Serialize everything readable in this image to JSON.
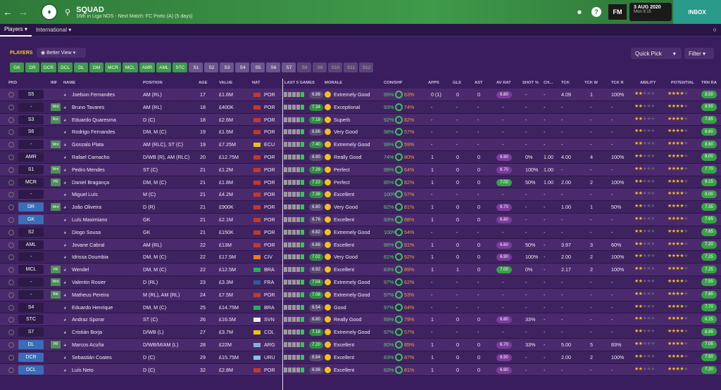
{
  "header": {
    "title": "SQUAD",
    "subtitle": "16th in Liga NOS - Next Match: FC Porto (A) (5 days)",
    "date": "3 AUG 2020",
    "time": "Mon 9:15",
    "fm_label": "FM",
    "inbox_label": "INBOX",
    "help_label": "?"
  },
  "tabs": [
    {
      "label": "Players"
    },
    {
      "label": "International"
    }
  ],
  "toolbar": {
    "players_label": "PLAYERS",
    "view_label": "Better View",
    "quick_pick": "Quick Pick",
    "filter": "Filter"
  },
  "positions_green": [
    "GK",
    "DR",
    "DCR",
    "DCL",
    "DL",
    "DM",
    "MCR",
    "MCL",
    "AMR",
    "AML",
    "STC"
  ],
  "positions_light": [
    "S1",
    "S2",
    "S3",
    "S4",
    "S5",
    "S6",
    "S7"
  ],
  "positions_dark": [
    "S8",
    "S9",
    "S10",
    "S11",
    "S12"
  ],
  "columns": {
    "pkd": "PKD",
    "inf": "INF",
    "name": "NAME",
    "position": "POSITION",
    "age": "AGE",
    "value": "VALUE",
    "nat": "NAT",
    "last5": "LAST 5 GAMES",
    "morale": "MORALE",
    "con": "CON/SHP",
    "apps": "APPS",
    "gls": "GLS",
    "ast": "AST",
    "avrat": "AV RAT",
    "shot": "SHOT %",
    "ch": "CH...",
    "tck": "TCK",
    "tckw": "TCK W",
    "tckr": "TCK R",
    "ability": "ABILITY",
    "potential": "POTENTIAL",
    "trnra": "TRN RA"
  },
  "players": [
    {
      "pkd": "S5",
      "inf": "",
      "name": "Joelson Fernandes",
      "pos": "AM (RL)",
      "age": "17",
      "value": "£1.6M",
      "nat": "POR",
      "mr": "6.88",
      "morale": "Extremely Good",
      "con": "95%",
      "shp": "63%",
      "apps": "0 (1)",
      "gls": "0",
      "ast": "0",
      "avr": "6.80",
      "shot": "-",
      "ch": "-",
      "tck": "4.09",
      "tckw": "1",
      "tckr": "100%",
      "trn": "8.50"
    },
    {
      "pkd": "-",
      "inf": "Wnt",
      "name": "Bruno Tavares",
      "pos": "AM (RL)",
      "age": "18",
      "value": "£400K",
      "nat": "POR",
      "mr": "7.34",
      "morale": "Exceptional",
      "con": "93%",
      "shp": "74%",
      "apps": "-",
      "gls": "-",
      "ast": "-",
      "avr": "-",
      "shot": "-",
      "ch": "-",
      "tck": "-",
      "tckw": "-",
      "tckr": "-",
      "trn": "8.50"
    },
    {
      "pkd": "S3",
      "inf": "Rsv",
      "name": "Eduardo Quaresma",
      "pos": "D (C)",
      "age": "18",
      "value": "£2.6M",
      "nat": "POR",
      "mr": "7.18",
      "morale": "Superb",
      "con": "92%",
      "shp": "82%",
      "apps": "-",
      "gls": "-",
      "ast": "-",
      "avr": "-",
      "shot": "-",
      "ch": "-",
      "tck": "-",
      "tckw": "-",
      "tckr": "-",
      "trn": "7.85"
    },
    {
      "pkd": "S6",
      "inf": "",
      "name": "Rodrigo Fernandes",
      "pos": "DM, M (C)",
      "age": "19",
      "value": "£1.5M",
      "nat": "POR",
      "mr": "6.86",
      "morale": "Very Good",
      "con": "98%",
      "shp": "57%",
      "apps": "-",
      "gls": "-",
      "ast": "-",
      "avr": "-",
      "shot": "-",
      "ch": "-",
      "tck": "-",
      "tckw": "-",
      "tckr": "-",
      "trn": "8.60"
    },
    {
      "pkd": "-",
      "inf": "Wnt",
      "name": "Gonzalo Plata",
      "pos": "AM (RLC), ST (C)",
      "age": "19",
      "value": "£7.25M",
      "nat": "ECU",
      "mr": "7.40",
      "morale": "Extremely Good",
      "con": "99%",
      "shp": "59%",
      "apps": "-",
      "gls": "-",
      "ast": "-",
      "avr": "-",
      "shot": "-",
      "ch": "-",
      "tck": "-",
      "tckw": "-",
      "tckr": "-",
      "trn": "8.60"
    },
    {
      "pkd": "AMR",
      "inf": "",
      "name": "Rafael Camacho",
      "pos": "D/WB (R), AM (RLC)",
      "age": "20",
      "value": "£12.75M",
      "nat": "POR",
      "mr": "6.90",
      "morale": "Really Good",
      "con": "74%",
      "shp": "80%",
      "apps": "1",
      "gls": "0",
      "ast": "0",
      "avr": "6.90",
      "shot": "0%",
      "ch": "1.00",
      "tck": "4.00",
      "tckw": "4",
      "tckr": "100%",
      "trn": "8.00"
    },
    {
      "pkd": "S1",
      "inf": "Wnt",
      "name": "Pedro Mendes",
      "pos": "ST (C)",
      "age": "21",
      "value": "£1.2M",
      "nat": "POR",
      "mr": "7.28",
      "morale": "Perfect",
      "con": "99%",
      "shp": "64%",
      "apps": "1",
      "gls": "0",
      "ast": "0",
      "avr": "6.70",
      "shot": "100%",
      "ch": "1.00",
      "tck": "-",
      "tckw": "-",
      "tckr": "-",
      "trn": "7.70"
    },
    {
      "pkd": "MCR",
      "inf": "PR",
      "name": "Daniel Bragança",
      "pos": "DM, M (C)",
      "age": "21",
      "value": "£1.8M",
      "nat": "POR",
      "mr": "7.22",
      "morale": "Perfect",
      "con": "85%",
      "shp": "82%",
      "apps": "1",
      "gls": "0",
      "ast": "0",
      "avr": "7.00",
      "shot": "50%",
      "ch": "1.00",
      "tck": "2.00",
      "tckw": "2",
      "tckr": "100%",
      "trn": "8.15"
    },
    {
      "pkd": "-",
      "inf": "",
      "name": "Miguel Luís",
      "pos": "M (C)",
      "age": "21",
      "value": "£4.2M",
      "nat": "POR",
      "mr": "7.36",
      "morale": "Excellent",
      "con": "100%",
      "shp": "57%",
      "apps": "-",
      "gls": "-",
      "ast": "-",
      "avr": "-",
      "shot": "-",
      "ch": "-",
      "tck": "-",
      "tckw": "-",
      "tckr": "-",
      "trn": "8.00"
    },
    {
      "pkd": "DR",
      "inf": "Wnt",
      "name": "João Oliveira",
      "pos": "D (R)",
      "age": "21",
      "value": "£900K",
      "nat": "POR",
      "mr": "6.80",
      "morale": "Very Good",
      "con": "82%",
      "shp": "81%",
      "apps": "1",
      "gls": "0",
      "ast": "0",
      "avr": "6.70",
      "shot": "-",
      "ch": "-",
      "tck": "1.00",
      "tckw": "1",
      "tckr": "50%",
      "trn": "7.35"
    },
    {
      "pkd": "GK",
      "inf": "",
      "name": "Luís Maximiano",
      "pos": "GK",
      "age": "21",
      "value": "£2.1M",
      "nat": "POR",
      "mr": "6.76",
      "morale": "Excellent",
      "con": "93%",
      "shp": "88%",
      "apps": "1",
      "gls": "0",
      "ast": "0",
      "avr": "6.80",
      "shot": "-",
      "ch": "-",
      "tck": "-",
      "tckw": "-",
      "tckr": "-",
      "trn": "7.65"
    },
    {
      "pkd": "S2",
      "inf": "",
      "name": "Diogo Sousa",
      "pos": "GK",
      "age": "21",
      "value": "£150K",
      "nat": "POR",
      "mr": "6.82",
      "morale": "Extremely Good",
      "con": "100%",
      "shp": "54%",
      "apps": "-",
      "gls": "-",
      "ast": "-",
      "avr": "-",
      "shot": "-",
      "ch": "-",
      "tck": "-",
      "tckw": "-",
      "tckr": "-",
      "trn": "7.65"
    },
    {
      "pkd": "AML",
      "inf": "",
      "name": "Jovane Cabral",
      "pos": "AM (RL)",
      "age": "22",
      "value": "£13M",
      "nat": "POR",
      "mr": "6.68",
      "morale": "Excellent",
      "con": "86%",
      "shp": "81%",
      "apps": "1",
      "gls": "0",
      "ast": "0",
      "avr": "6.60",
      "shot": "50%",
      "ch": "-",
      "tck": "3.97",
      "tckw": "3",
      "tckr": "60%",
      "trn": "7.20"
    },
    {
      "pkd": "-",
      "inf": "",
      "name": "Idrissa Doumbia",
      "pos": "DM, M (C)",
      "age": "22",
      "value": "£17.5M",
      "nat": "CIV",
      "mr": "7.02",
      "morale": "Very Good",
      "con": "81%",
      "shp": "92%",
      "apps": "1",
      "gls": "0",
      "ast": "0",
      "avr": "6.90",
      "shot": "100%",
      "ch": "-",
      "tck": "2.00",
      "tckw": "2",
      "tckr": "100%",
      "trn": "7.25"
    },
    {
      "pkd": "MCL",
      "inf": "PR",
      "name": "Wendel",
      "pos": "DM, M (C)",
      "age": "22",
      "value": "£12.5M",
      "nat": "BRA",
      "mr": "6.92",
      "morale": "Excellent",
      "con": "83%",
      "shp": "89%",
      "apps": "1",
      "gls": "1",
      "ast": "0",
      "avr": "7.00",
      "shot": "0%",
      "ch": "-",
      "tck": "2.17",
      "tckw": "2",
      "tckr": "100%",
      "trn": "7.25"
    },
    {
      "pkd": "-",
      "inf": "Wnt",
      "name": "Valentin Rosier",
      "pos": "D (RL)",
      "age": "23",
      "value": "£3.3M",
      "nat": "FRA",
      "mr": "7.04",
      "morale": "Extremely Good",
      "con": "97%",
      "shp": "62%",
      "apps": "-",
      "gls": "-",
      "ast": "-",
      "avr": "-",
      "shot": "-",
      "ch": "-",
      "tck": "-",
      "tckw": "-",
      "tckr": "-",
      "trn": "7.55"
    },
    {
      "pkd": "-",
      "inf": "Bkt",
      "name": "Matheus Pereira",
      "pos": "M (RL), AM (RL)",
      "age": "24",
      "value": "£7.5M",
      "nat": "POR",
      "mr": "7.08",
      "morale": "Extremely Good",
      "con": "97%",
      "shp": "53%",
      "apps": "-",
      "gls": "-",
      "ast": "-",
      "avr": "-",
      "shot": "-",
      "ch": "-",
      "tck": "-",
      "tckw": "-",
      "tckr": "-",
      "trn": "7.85"
    },
    {
      "pkd": "S4",
      "inf": "",
      "name": "Eduardo Henrique",
      "pos": "DM, M (C)",
      "age": "25",
      "value": "£14.75M",
      "nat": "BRA",
      "mr": "6.54",
      "morale": "Good",
      "con": "97%",
      "shp": "64%",
      "apps": "-",
      "gls": "-",
      "ast": "-",
      "avr": "-",
      "shot": "-",
      "ch": "-",
      "tck": "-",
      "tckw": "-",
      "tckr": "-",
      "trn": "7.70"
    },
    {
      "pkd": "STC",
      "inf": "",
      "name": "Andraz Sporar",
      "pos": "ST (C)",
      "age": "26",
      "value": "£16.5M",
      "nat": "SVN",
      "mr": "6.80",
      "morale": "Really Good",
      "con": "89%",
      "shp": "79%",
      "apps": "1",
      "gls": "0",
      "ast": "0",
      "avr": "6.80",
      "shot": "33%",
      "ch": "-",
      "tck": "-",
      "tckw": "-",
      "tckr": "-",
      "trn": "6.25"
    },
    {
      "pkd": "S7",
      "inf": "",
      "name": "Cristián Borja",
      "pos": "D/WB (L)",
      "age": "27",
      "value": "£3.7M",
      "nat": "COL",
      "mr": "7.18",
      "morale": "Extremely Good",
      "con": "97%",
      "shp": "57%",
      "apps": "-",
      "gls": "-",
      "ast": "-",
      "avr": "-",
      "shot": "-",
      "ch": "-",
      "tck": "-",
      "tckw": "-",
      "tckr": "-",
      "trn": "6.95"
    },
    {
      "pkd": "DL",
      "inf": "PR",
      "name": "Marcos Acuña",
      "pos": "D/WB/M/AM (L)",
      "age": "28",
      "value": "£22M",
      "nat": "ARG",
      "mr": "7.20",
      "morale": "Excellent",
      "con": "80%",
      "shp": "85%",
      "apps": "1",
      "gls": "0",
      "ast": "0",
      "avr": "6.70",
      "shot": "33%",
      "ch": "-",
      "tck": "5.00",
      "tckw": "5",
      "tckr": "83%",
      "trn": "7.05"
    },
    {
      "pkd": "DCR",
      "inf": "",
      "name": "Sebastián Coates",
      "pos": "D (C)",
      "age": "29",
      "value": "£15.75M",
      "nat": "URU",
      "mr": "6.84",
      "morale": "Excellent",
      "con": "83%",
      "shp": "87%",
      "apps": "1",
      "gls": "0",
      "ast": "0",
      "avr": "6.90",
      "shot": "-",
      "ch": "-",
      "tck": "2.00",
      "tckw": "2",
      "tckr": "100%",
      "trn": "7.50"
    },
    {
      "pkd": "DCL",
      "inf": "",
      "name": "Luís Neto",
      "pos": "D (C)",
      "age": "32",
      "value": "£2.8M",
      "nat": "POR",
      "mr": "6.96",
      "morale": "Excellent",
      "con": "83%",
      "shp": "81%",
      "apps": "1",
      "gls": "0",
      "ast": "0",
      "avr": "6.90",
      "shot": "-",
      "ch": "-",
      "tck": "-",
      "tckw": "-",
      "tckr": "-",
      "trn": "7.20"
    }
  ]
}
